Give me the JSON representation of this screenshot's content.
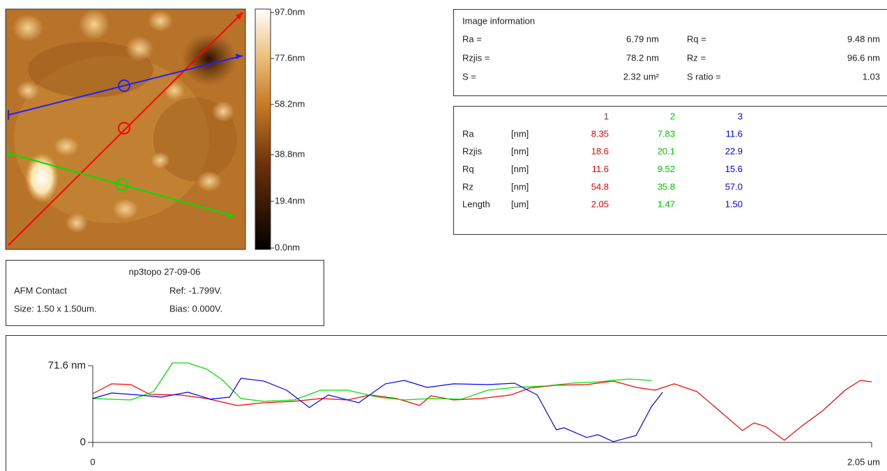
{
  "colorbar": {
    "labels": [
      "97.0nm",
      "77.6nm",
      "58.2nm",
      "38.8nm",
      "19.4nm",
      "0.0nm"
    ]
  },
  "caption": {
    "title": "np3topo 27-09-06",
    "mode": "AFM Contact",
    "ref": "Ref: -1.799V.",
    "size": "Size: 1.50 x 1.50um.",
    "bias": "Bias: 0.000V."
  },
  "image_info": {
    "title": "Image information",
    "rows": [
      [
        "Ra =",
        "6.79 nm",
        "Rq =",
        "9.48 nm"
      ],
      [
        "Rzjis =",
        "78.2 nm",
        "Rz =",
        "96.6 nm"
      ],
      [
        "S =",
        "2.32 um²",
        "S ratio =",
        "1.03"
      ]
    ]
  },
  "line_table": {
    "header": [
      "1",
      "2",
      "3"
    ],
    "rows": [
      [
        "Ra",
        "[nm]",
        "8.35",
        "7.83",
        "11.6"
      ],
      [
        "Rzjis",
        "[nm]",
        "18.6",
        "20.1",
        "22.9"
      ],
      [
        "Rq",
        "[nm]",
        "11.6",
        "9.52",
        "15.6"
      ],
      [
        "Rz",
        "[nm]",
        "54.8",
        "35.8",
        "57.0"
      ],
      [
        "Length",
        "[um]",
        "2.05",
        "1.47",
        "1.50"
      ]
    ]
  },
  "profile": {
    "type": "line",
    "xlim": [
      0,
      2.05
    ],
    "ylim": [
      0,
      80
    ],
    "xticks": [
      0,
      {
        "value": 2.05,
        "label": "2.05 um"
      }
    ],
    "yticks": [
      0,
      {
        "value": 71.6,
        "label": "71.6 nm"
      }
    ],
    "series": [
      {
        "color": "#ff0000",
        "x": [
          0,
          0.05,
          0.1,
          0.15,
          0.23,
          0.3,
          0.38,
          0.45,
          0.53,
          0.6,
          0.67,
          0.73,
          0.8,
          0.86,
          0.89,
          0.95,
          1.02,
          1.1,
          1.15,
          1.22,
          1.3,
          1.37,
          1.43,
          1.48,
          1.53,
          1.59,
          1.65,
          1.71,
          1.74,
          1.77,
          1.82,
          1.87,
          1.92,
          1.98,
          2.02,
          2.05
        ],
        "values": [
          45.6,
          54.7,
          54.0,
          44.9,
          44.3,
          41.0,
          34.5,
          37.1,
          38.4,
          41.0,
          39.7,
          44.3,
          41.0,
          34.5,
          43.6,
          39.7,
          41.0,
          44.3,
          50.8,
          53.4,
          54.0,
          57.3,
          51.4,
          48.8,
          54.7,
          47.5,
          29.3,
          11.1,
          18.2,
          15.0,
          2.0,
          16.3,
          29.3,
          48.8,
          57.9,
          56.6
        ]
      },
      {
        "color": "#00e000",
        "x": [
          0,
          0.1,
          0.16,
          0.21,
          0.25,
          0.3,
          0.34,
          0.39,
          0.45,
          0.53,
          0.6,
          0.67,
          0.75,
          0.82,
          0.89,
          0.97,
          1.04,
          1.11,
          1.19,
          1.26,
          1.33,
          1.41,
          1.47
        ],
        "values": [
          41.0,
          39.7,
          47.5,
          74.2,
          74.2,
          68.4,
          58.6,
          41.0,
          38.4,
          39.7,
          48.8,
          48.8,
          42.3,
          39.7,
          41.0,
          40.4,
          48.8,
          51.4,
          52.7,
          55.3,
          56.6,
          59.2,
          57.9
        ]
      },
      {
        "color": "#0000ff",
        "x": [
          0,
          0.05,
          0.12,
          0.18,
          0.25,
          0.31,
          0.36,
          0.39,
          0.45,
          0.51,
          0.57,
          0.62,
          0.7,
          0.77,
          0.82,
          0.88,
          0.95,
          1.04,
          1.11,
          1.17,
          1.22,
          1.24,
          1.3,
          1.33,
          1.37,
          1.43,
          1.47,
          1.5
        ],
        "values": [
          41.0,
          46.2,
          44.3,
          42.3,
          46.9,
          40.4,
          42.3,
          59.9,
          57.3,
          48.8,
          32.6,
          44.3,
          37.1,
          54.7,
          57.9,
          51.4,
          54.7,
          54.0,
          55.3,
          44.3,
          11.7,
          13.7,
          4.6,
          7.2,
          0.7,
          6.5,
          33.2,
          46.9
        ]
      }
    ]
  }
}
